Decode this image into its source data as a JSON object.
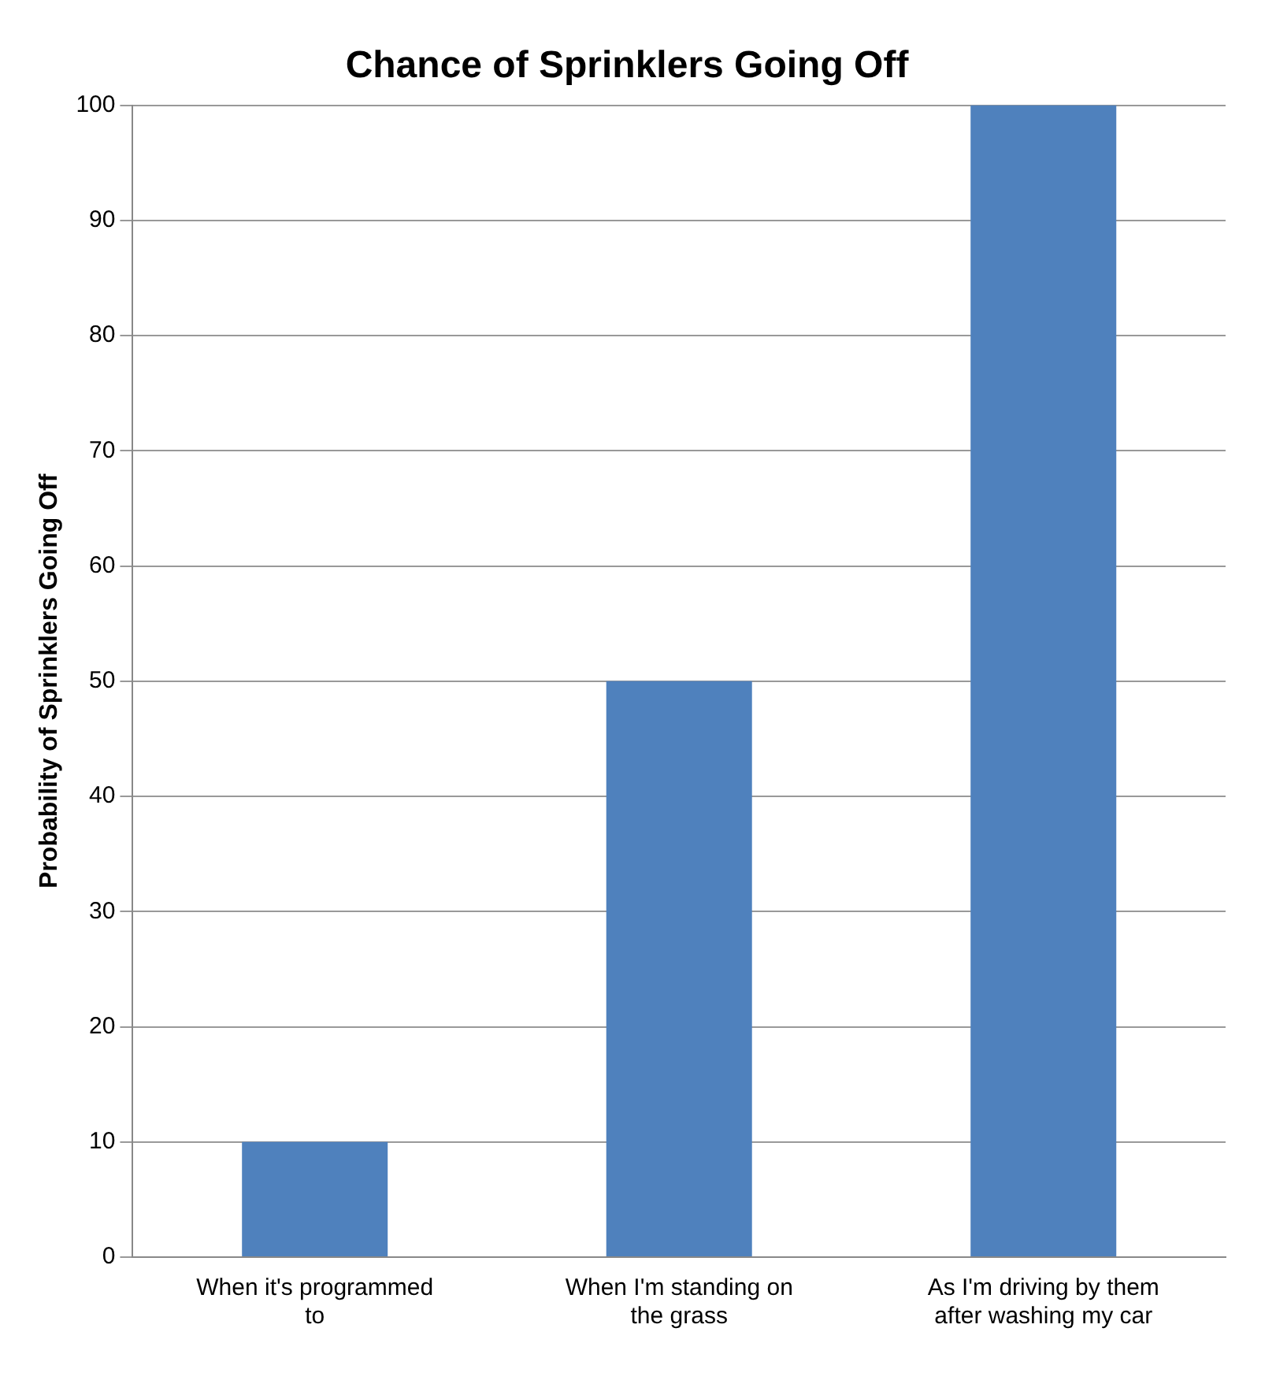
{
  "chart_data": {
    "type": "bar",
    "title": "Chance of Sprinklers Going Off",
    "ylabel": "Probability of Sprinklers Going Off",
    "categories": [
      [
        "When it's programmed",
        "to"
      ],
      [
        "When I'm standing on",
        "the grass"
      ],
      [
        "As I'm driving by them",
        "after washing my car"
      ]
    ],
    "values": [
      10,
      50,
      100
    ],
    "color": "#4f81bd",
    "ylim": [
      0,
      100
    ],
    "yticks": [
      0,
      10,
      20,
      30,
      40,
      50,
      60,
      70,
      80,
      90,
      100
    ],
    "grid": "y"
  }
}
